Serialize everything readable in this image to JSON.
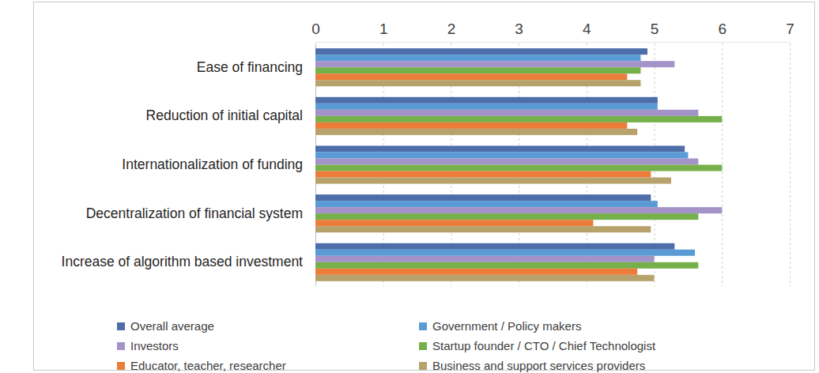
{
  "chart_data": {
    "type": "bar",
    "orientation": "horizontal",
    "categories": [
      "Ease of financing",
      "Reduction of initial capital",
      "Internationalization of funding",
      "Decentralization of financial system",
      "Increase of algorithm based investment"
    ],
    "series": [
      {
        "name": "Overall average",
        "color": "#4d6ea8",
        "values": [
          4.9,
          5.05,
          5.45,
          4.95,
          5.3
        ]
      },
      {
        "name": "Government / Policy makers",
        "color": "#5b9bd5",
        "values": [
          4.8,
          5.05,
          5.5,
          5.05,
          5.6
        ]
      },
      {
        "name": "Investors",
        "color": "#a393c9",
        "values": [
          5.3,
          5.65,
          5.65,
          6.0,
          5.0
        ]
      },
      {
        "name": "Startup founder / CTO / Chief Technologist",
        "color": "#76b04a",
        "values": [
          4.8,
          6.0,
          6.0,
          5.65,
          5.65
        ]
      },
      {
        "name": "Educator, teacher, researcher",
        "color": "#ec7c3a",
        "values": [
          4.6,
          4.6,
          4.95,
          4.1,
          4.75
        ]
      },
      {
        "name": "Business and support services providers",
        "color": "#b7a26c",
        "values": [
          4.8,
          4.75,
          5.25,
          4.95,
          5.0
        ]
      }
    ],
    "xlim": [
      0,
      7
    ],
    "xticks": [
      0,
      1,
      2,
      3,
      4,
      5,
      6,
      7
    ],
    "grid": true,
    "legend": "bottom"
  }
}
